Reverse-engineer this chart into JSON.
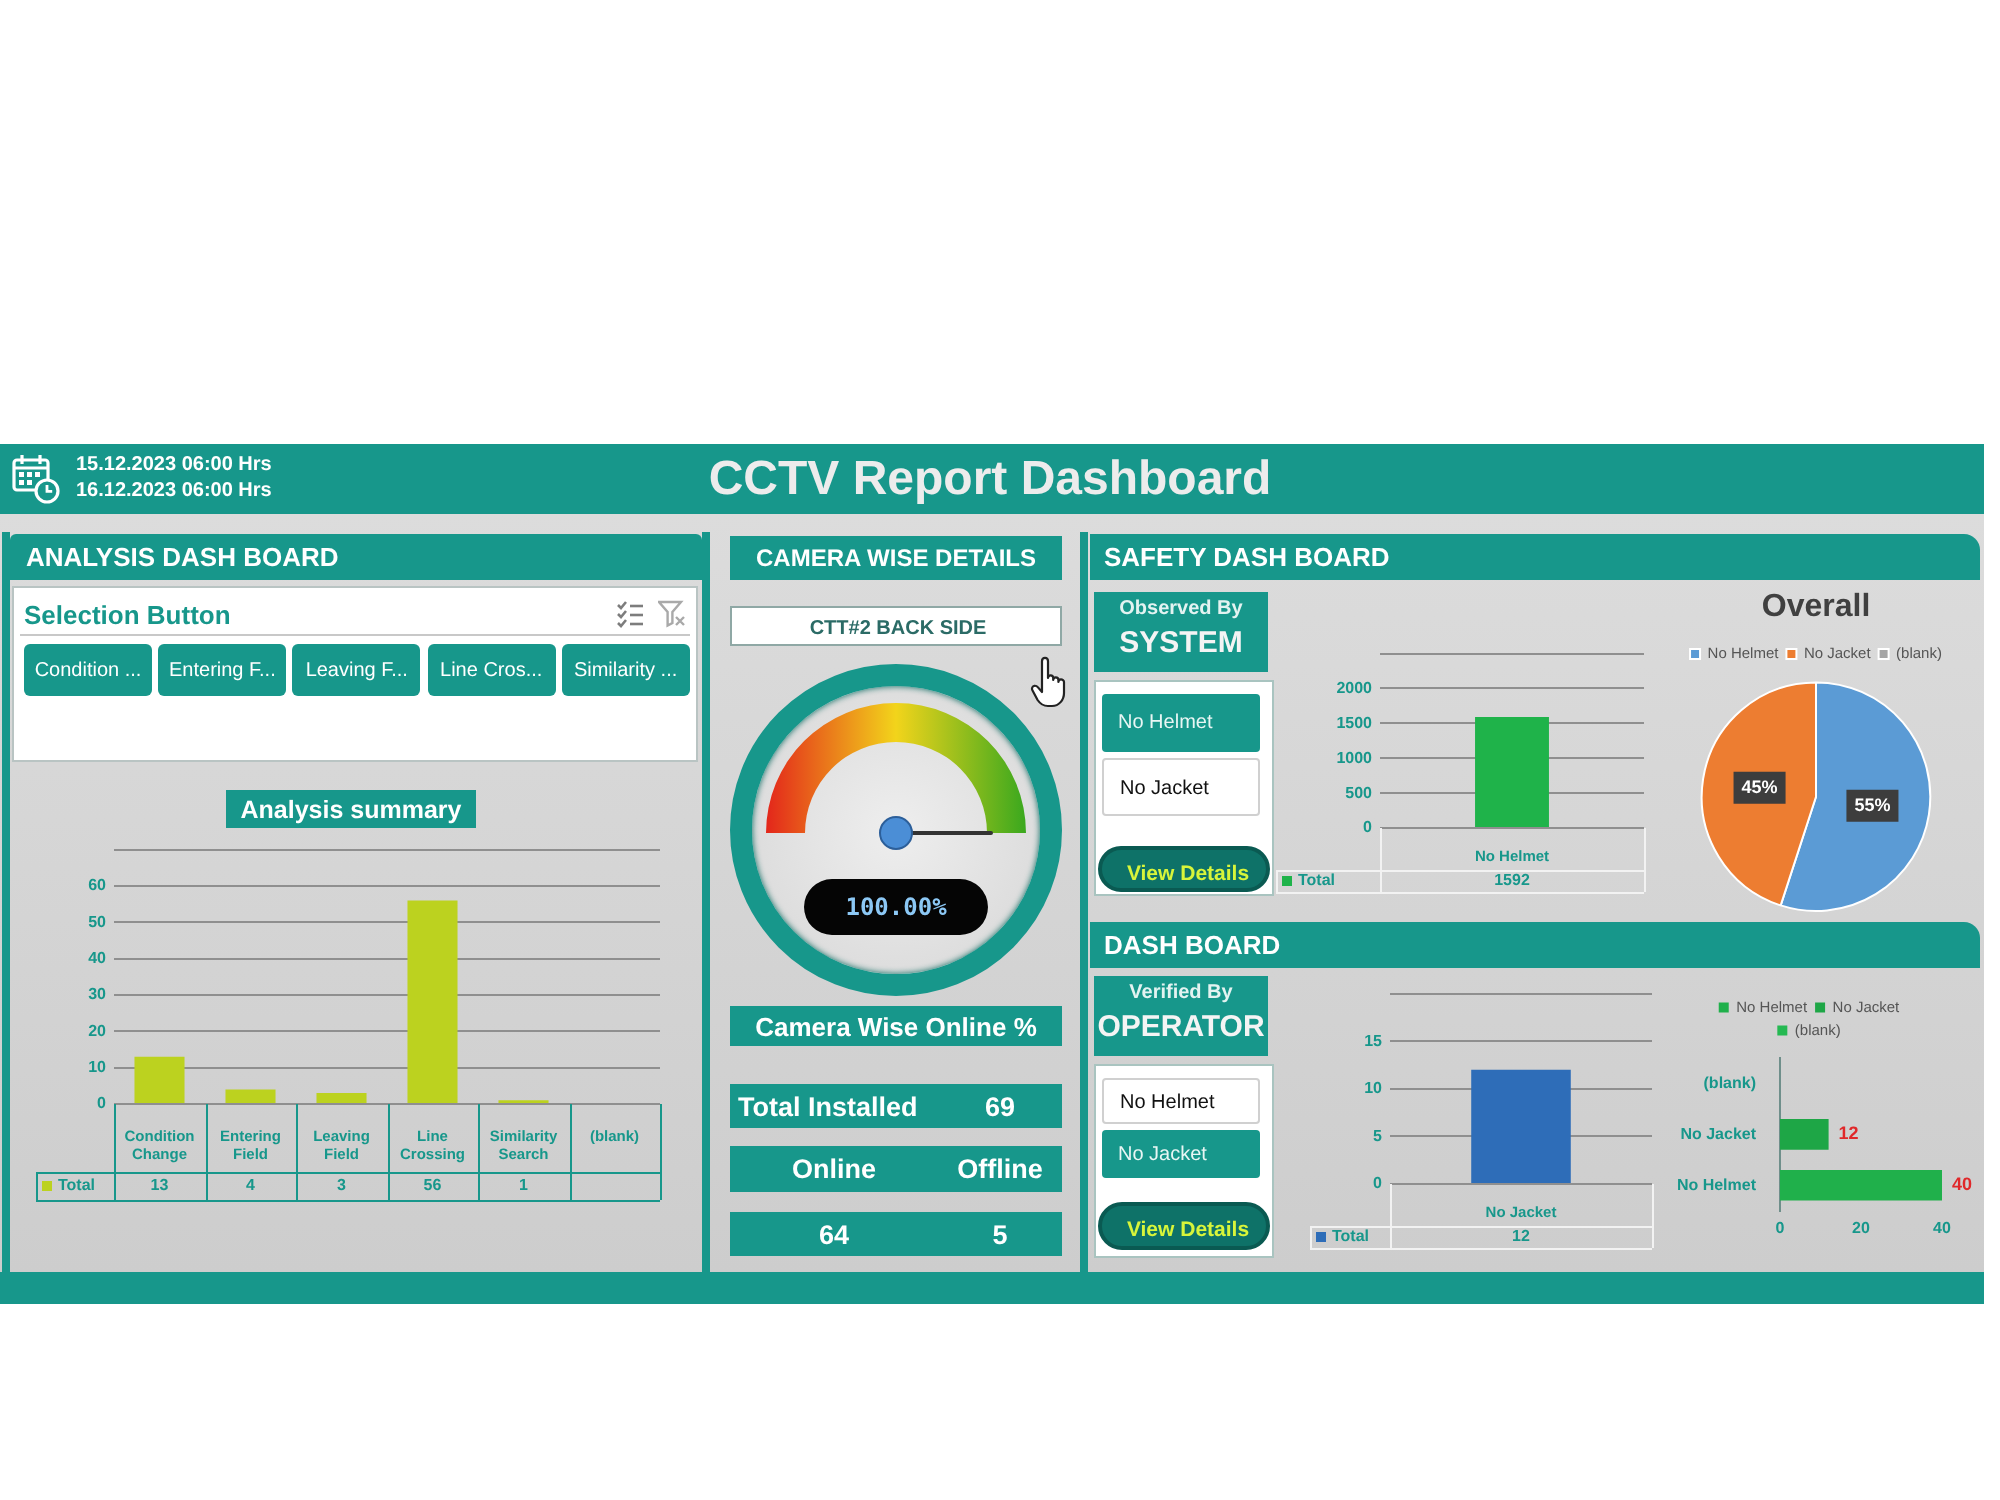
{
  "chart_data": [
    {
      "type": "other",
      "title": "CCTV Report Dashboard",
      "annotations": [
        "15.12.2023 06:00 Hrs",
        "16.12.2023 06:00 Hrs"
      ]
    },
    {
      "type": "other",
      "title": "ANALYSIS DASH BOARD",
      "subtitle": "Selection Button",
      "annotations": [
        "Condition ...",
        "Entering F...",
        "Leaving F...",
        "Line Cros...",
        "Similarity ..."
      ]
    },
    {
      "type": "bar",
      "title": "Analysis summary",
      "categories": [
        "Condition Change",
        "Entering Field",
        "Leaving Field",
        "Line Crossing",
        "Similarity Search",
        "(blank)"
      ],
      "series": [
        {
          "name": "Total",
          "color": "#bcd21f",
          "values": [
            13,
            4,
            3,
            56,
            1,
            null
          ]
        }
      ],
      "ylim": [
        0,
        70
      ],
      "yticks": [
        0,
        10,
        20,
        30,
        40,
        50,
        60,
        {
          "value": 70,
          "label": null
        }
      ],
      "grid": "y",
      "data_labels": true
    },
    {
      "type": "other",
      "title": "CAMERA WISE DETAILS",
      "subtitle": "CTT#2 BACK SIDE",
      "xlabel": "Camera Wise Online %",
      "values": [
        100
      ],
      "value_labels": [
        "100.00%"
      ]
    },
    {
      "type": "other",
      "categories": [
        "Total Installed",
        "Online",
        "Offline"
      ],
      "values": [
        69,
        64,
        5
      ],
      "data_labels": true
    },
    {
      "type": "other",
      "title": "SAFETY DASH BOARD",
      "annotations": [
        "Observed By",
        "SYSTEM",
        "No Helmet",
        "No Jacket",
        "View Details"
      ]
    },
    {
      "type": "bar",
      "categories": [
        "No Helmet"
      ],
      "series": [
        {
          "name": "Total",
          "color": "#1fb34a",
          "values": [
            1592
          ],
          "value_labels": [
            "1592"
          ]
        }
      ],
      "ylim": [
        0,
        2500
      ],
      "yticks": [
        0,
        500,
        1000,
        1500,
        2000,
        {
          "value": 2500,
          "label": null
        }
      ],
      "grid": "y"
    },
    {
      "type": "pie",
      "title": "Overall",
      "categories": [
        "No Helmet",
        "No Jacket",
        "(blank)"
      ],
      "values": [
        55,
        45,
        null
      ],
      "colors": [
        "#5b9bd5",
        "#ed7d31",
        "#a5a5a5"
      ],
      "value_labels": [
        "55%",
        "45%",
        null
      ],
      "legend": "top"
    },
    {
      "type": "other",
      "title": "DASH BOARD",
      "annotations": [
        "Verified By",
        "OPERATOR",
        "No Helmet",
        "No Jacket",
        "View Details"
      ]
    },
    {
      "type": "bar",
      "categories": [
        "No Jacket"
      ],
      "series": [
        {
          "name": "Total",
          "color": "#2e6db8",
          "values": [
            12
          ],
          "value_labels": [
            "12"
          ]
        }
      ],
      "ylim": [
        0,
        20
      ],
      "yticks": [
        0,
        5,
        10,
        15,
        {
          "value": 20,
          "label": null
        }
      ],
      "grid": "y"
    },
    {
      "type": "bar",
      "orientation": "horizontal",
      "categories": [
        "(blank)",
        "No Jacket",
        "No Helmet"
      ],
      "series": [
        {
          "name": "No Helmet",
          "color": "#20b04b",
          "values": [
            null,
            null,
            40
          ]
        },
        {
          "name": "No Jacket",
          "color": "#1ea646",
          "values": [
            null,
            12,
            null
          ]
        },
        {
          "name": "(blank)",
          "color": "#25b952",
          "values": [
            null,
            null,
            null
          ]
        }
      ],
      "xlim": [
        0,
        40
      ],
      "xticks": [
        0,
        20,
        40
      ],
      "legend": "top",
      "data_labels": true
    }
  ]
}
